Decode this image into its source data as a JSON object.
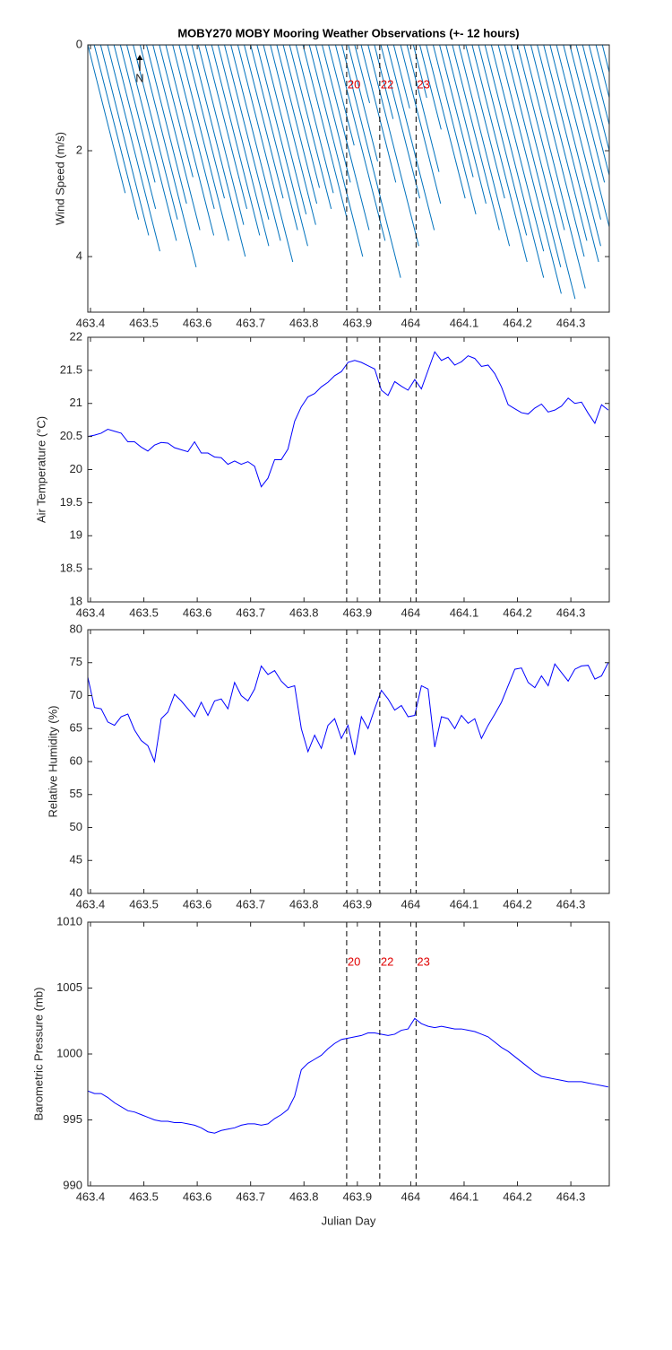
{
  "chart_data": [
    {
      "type": "quiver",
      "title": "MOBY270 MOBY Mooring Weather Observations (+- 12 hours)",
      "ylabel": "Wind Speed (m/s)",
      "north_label": "N",
      "color": "#0072bd",
      "y_reverse": true,
      "xlim": [
        463.395,
        464.372
      ],
      "xticks": [
        463.4,
        463.5,
        463.6,
        463.7,
        463.8,
        463.9,
        464,
        464.1,
        464.2,
        464.3
      ],
      "ylim": [
        0,
        5.05
      ],
      "yticks": [
        0,
        2,
        4
      ],
      "vlines": [
        463.88,
        463.942,
        464.01
      ],
      "vline_labels": [
        "20",
        "22",
        "23"
      ],
      "vline_label_color": "#e00000",
      "x": [
        463.395,
        463.407,
        463.419,
        463.432,
        463.444,
        463.456,
        463.468,
        463.48,
        463.493,
        463.505,
        463.517,
        463.529,
        463.541,
        463.554,
        463.566,
        463.578,
        463.59,
        463.602,
        463.615,
        463.627,
        463.639,
        463.651,
        463.663,
        463.676,
        463.688,
        463.7,
        463.712,
        463.724,
        463.737,
        463.749,
        463.761,
        463.773,
        463.785,
        463.798,
        463.81,
        463.822,
        463.834,
        463.846,
        463.859,
        463.871,
        463.883,
        463.895,
        463.907,
        463.92,
        463.932,
        463.944,
        463.956,
        463.968,
        463.981,
        463.993,
        464.005,
        464.017,
        464.029,
        464.042,
        464.054,
        464.066,
        464.078,
        464.09,
        464.103,
        464.115,
        464.127,
        464.139,
        464.151,
        464.164,
        464.176,
        464.188,
        464.2,
        464.212,
        464.225,
        464.237,
        464.249,
        464.261,
        464.273,
        464.286,
        464.298,
        464.31,
        464.322,
        464.334,
        464.347,
        464.359
      ],
      "end_x": [
        463.465,
        463.49,
        463.509,
        463.53,
        463.522,
        463.521,
        463.561,
        463.563,
        463.598,
        463.58,
        463.605,
        463.592,
        463.631,
        463.632,
        463.659,
        463.651,
        463.69,
        463.687,
        463.693,
        463.717,
        463.734,
        463.734,
        463.756,
        463.779,
        463.761,
        463.788,
        463.807,
        463.804,
        463.822,
        463.824,
        463.829,
        463.851,
        463.855,
        463.881,
        463.91,
        463.887,
        463.922,
        463.894,
        463.952,
        463.981,
        463.938,
        463.923,
        463.972,
        464.015,
        463.967,
        464.017,
        464.044,
        463.998,
        464.056,
        464.053,
        464.03,
        464.057,
        464.102,
        464.122,
        464.117,
        464.141,
        464.166,
        464.185,
        464.176,
        464.218,
        464.217,
        464.249,
        464.249,
        464.282,
        464.281,
        464.308,
        464.288,
        464.327,
        464.325,
        464.33,
        464.352,
        464.356,
        464.356,
        464.386,
        464.363,
        464.398,
        464.377,
        464.412,
        464.387,
        464.444
      ],
      "end_y": [
        2.8,
        3.3,
        3.6,
        3.9,
        3.1,
        2.6,
        3.7,
        3.3,
        4.2,
        3.0,
        3.5,
        2.5,
        3.6,
        3.1,
        3.7,
        2.9,
        4.0,
        3.4,
        3.1,
        3.6,
        3.8,
        3.3,
        3.7,
        4.1,
        2.9,
        3.5,
        3.8,
        3.2,
        3.4,
        3.0,
        2.7,
        3.1,
        2.8,
        3.3,
        4.0,
        2.6,
        3.5,
        1.9,
        3.7,
        4.4,
        2.2,
        1.1,
        2.6,
        3.8,
        1.4,
        2.9,
        3.5,
        1.2,
        3.0,
        2.4,
        1.0,
        1.6,
        2.9,
        3.2,
        2.5,
        3.0,
        3.5,
        3.8,
        2.9,
        4.1,
        3.6,
        4.4,
        3.9,
        4.7,
        4.2,
        4.8,
        3.5,
        4.6,
        4.0,
        3.7,
        4.1,
        3.8,
        3.3,
        4.0,
        2.6,
        3.5,
        2.2,
        3.1,
        1.6,
        3.4
      ]
    },
    {
      "type": "line",
      "ylabel": "Air Temperature (°C)",
      "color": "#0000ff",
      "xlim": [
        463.395,
        464.372
      ],
      "xticks": [
        463.4,
        463.5,
        463.6,
        463.7,
        463.8,
        463.9,
        464,
        464.1,
        464.2,
        464.3
      ],
      "ylim": [
        18,
        22
      ],
      "yticks": [
        18,
        18.5,
        19,
        19.5,
        20,
        20.5,
        21,
        21.5,
        22
      ],
      "vlines": [
        463.88,
        463.942,
        464.01
      ],
      "x": [
        463.395,
        463.4075,
        463.42,
        463.4325,
        463.445,
        463.4575,
        463.47,
        463.4825,
        463.495,
        463.5075,
        463.52,
        463.5325,
        463.545,
        463.5575,
        463.57,
        463.5825,
        463.595,
        463.6075,
        463.62,
        463.6325,
        463.645,
        463.6575,
        463.67,
        463.6825,
        463.695,
        463.7075,
        463.72,
        463.7325,
        463.745,
        463.7575,
        463.77,
        463.7825,
        463.795,
        463.8075,
        463.82,
        463.8325,
        463.845,
        463.8575,
        463.87,
        463.8825,
        463.895,
        463.9075,
        463.92,
        463.9325,
        463.945,
        463.9575,
        463.97,
        463.9825,
        463.995,
        464.0075,
        464.02,
        464.0325,
        464.045,
        464.0575,
        464.07,
        464.0825,
        464.095,
        464.1075,
        464.12,
        464.1325,
        464.145,
        464.1575,
        464.17,
        464.1825,
        464.195,
        464.2075,
        464.22,
        464.2325,
        464.245,
        464.2575,
        464.27,
        464.2825,
        464.295,
        464.3075,
        464.32,
        464.3325,
        464.345,
        464.3575,
        464.37
      ],
      "values": [
        20.5,
        20.52,
        20.55,
        20.61,
        20.58,
        20.55,
        20.42,
        20.42,
        20.34,
        20.28,
        20.37,
        20.41,
        20.4,
        20.33,
        20.3,
        20.27,
        20.42,
        20.25,
        20.25,
        20.19,
        20.18,
        20.08,
        20.13,
        20.08,
        20.12,
        20.05,
        19.74,
        19.87,
        20.15,
        20.15,
        20.31,
        20.73,
        20.95,
        21.1,
        21.15,
        21.25,
        21.32,
        21.42,
        21.48,
        21.62,
        21.65,
        21.62,
        21.57,
        21.52,
        21.2,
        21.12,
        21.33,
        21.26,
        21.2,
        21.36,
        21.22,
        21.5,
        21.78,
        21.65,
        21.7,
        21.58,
        21.63,
        21.72,
        21.68,
        21.56,
        21.58,
        21.45,
        21.25,
        20.98,
        20.92,
        20.86,
        20.84,
        20.93,
        20.99,
        20.87,
        20.9,
        20.96,
        21.08,
        21.0,
        21.02,
        20.85,
        20.7,
        20.98,
        20.9
      ]
    },
    {
      "type": "line",
      "ylabel": "Relative Humidity (%)",
      "color": "#0000ff",
      "xlim": [
        463.395,
        464.372
      ],
      "xticks": [
        463.4,
        463.5,
        463.6,
        463.7,
        463.8,
        463.9,
        464,
        464.1,
        464.2,
        464.3
      ],
      "ylim": [
        40,
        80
      ],
      "yticks": [
        40,
        45,
        50,
        55,
        60,
        65,
        70,
        75,
        80
      ],
      "vlines": [
        463.88,
        463.942,
        464.01
      ],
      "x": [
        463.395,
        463.4075,
        463.42,
        463.4325,
        463.445,
        463.4575,
        463.47,
        463.4825,
        463.495,
        463.5075,
        463.52,
        463.5325,
        463.545,
        463.5575,
        463.57,
        463.5825,
        463.595,
        463.6075,
        463.62,
        463.6325,
        463.645,
        463.6575,
        463.67,
        463.6825,
        463.695,
        463.7075,
        463.72,
        463.7325,
        463.745,
        463.7575,
        463.77,
        463.7825,
        463.795,
        463.8075,
        463.82,
        463.8325,
        463.845,
        463.8575,
        463.87,
        463.8825,
        463.895,
        463.9075,
        463.92,
        463.9325,
        463.945,
        463.9575,
        463.97,
        463.9825,
        463.995,
        464.0075,
        464.02,
        464.0325,
        464.045,
        464.0575,
        464.07,
        464.0825,
        464.095,
        464.1075,
        464.12,
        464.1325,
        464.145,
        464.1575,
        464.17,
        464.1825,
        464.195,
        464.2075,
        464.22,
        464.2325,
        464.245,
        464.2575,
        464.27,
        464.2825,
        464.295,
        464.3075,
        464.32,
        464.3325,
        464.345,
        464.3575,
        464.37
      ],
      "values": [
        72.8,
        68.2,
        68.0,
        66.0,
        65.5,
        66.8,
        67.2,
        64.8,
        63.2,
        62.4,
        60.0,
        66.5,
        67.5,
        70.2,
        69.2,
        68.0,
        66.8,
        69.0,
        67.0,
        69.2,
        69.5,
        68.0,
        72.0,
        70.0,
        69.2,
        71.0,
        74.5,
        73.2,
        73.8,
        72.2,
        71.2,
        71.5,
        65.0,
        61.5,
        64.0,
        62.0,
        65.5,
        66.5,
        63.5,
        65.5,
        61.0,
        66.8,
        65.0,
        68.0,
        70.8,
        69.5,
        67.8,
        68.5,
        66.8,
        67.0,
        71.5,
        71.0,
        62.2,
        66.8,
        66.5,
        65.0,
        67.0,
        65.8,
        66.5,
        63.5,
        65.5,
        67.2,
        69.0,
        71.5,
        74.0,
        74.2,
        72.0,
        71.2,
        73.0,
        71.5,
        74.8,
        73.5,
        72.2,
        74.0,
        74.5,
        74.6,
        72.5,
        73.0,
        75.0
      ]
    },
    {
      "type": "line",
      "ylabel": "Barometric Pressure (mb)",
      "xlabel": "Julian Day",
      "color": "#0000ff",
      "xlim": [
        463.395,
        464.372
      ],
      "xticks": [
        463.4,
        463.5,
        463.6,
        463.7,
        463.8,
        463.9,
        464,
        464.1,
        464.2,
        464.3
      ],
      "ylim": [
        990,
        1010
      ],
      "yticks": [
        990,
        995,
        1000,
        1005,
        1010
      ],
      "vlines": [
        463.88,
        463.942,
        464.01
      ],
      "vline_labels": [
        "20",
        "22",
        "23"
      ],
      "vline_label_color": "#e00000",
      "x": [
        463.395,
        463.4075,
        463.42,
        463.4325,
        463.445,
        463.4575,
        463.47,
        463.4825,
        463.495,
        463.5075,
        463.52,
        463.5325,
        463.545,
        463.5575,
        463.57,
        463.5825,
        463.595,
        463.6075,
        463.62,
        463.6325,
        463.645,
        463.6575,
        463.67,
        463.6825,
        463.695,
        463.7075,
        463.72,
        463.7325,
        463.745,
        463.7575,
        463.77,
        463.7825,
        463.795,
        463.8075,
        463.82,
        463.8325,
        463.845,
        463.8575,
        463.87,
        463.8825,
        463.895,
        463.9075,
        463.92,
        463.9325,
        463.945,
        463.9575,
        463.97,
        463.9825,
        463.995,
        464.0075,
        464.02,
        464.0325,
        464.045,
        464.0575,
        464.07,
        464.0825,
        464.095,
        464.1075,
        464.12,
        464.1325,
        464.145,
        464.1575,
        464.17,
        464.1825,
        464.195,
        464.2075,
        464.22,
        464.2325,
        464.245,
        464.2575,
        464.27,
        464.2825,
        464.295,
        464.3075,
        464.32,
        464.3325,
        464.345,
        464.3575,
        464.37
      ],
      "values": [
        997.2,
        997.0,
        997.0,
        996.7,
        996.3,
        996.0,
        995.7,
        995.6,
        995.4,
        995.2,
        995.0,
        994.9,
        994.9,
        994.8,
        994.8,
        994.7,
        994.6,
        994.4,
        994.1,
        994.0,
        994.2,
        994.3,
        994.4,
        994.6,
        994.7,
        994.7,
        994.6,
        994.7,
        995.1,
        995.4,
        995.8,
        996.8,
        998.8,
        999.3,
        999.6,
        999.9,
        1000.4,
        1000.8,
        1001.1,
        1001.2,
        1001.3,
        1001.4,
        1001.6,
        1001.6,
        1001.5,
        1001.4,
        1001.5,
        1001.8,
        1001.9,
        1002.7,
        1002.3,
        1002.1,
        1002.0,
        1002.1,
        1002.0,
        1001.9,
        1001.9,
        1001.8,
        1001.7,
        1001.5,
        1001.3,
        1000.9,
        1000.5,
        1000.2,
        999.8,
        999.4,
        999.0,
        998.6,
        998.3,
        998.2,
        998.1,
        998.0,
        997.9,
        997.9,
        997.9,
        997.8,
        997.7,
        997.6,
        997.5
      ]
    }
  ]
}
